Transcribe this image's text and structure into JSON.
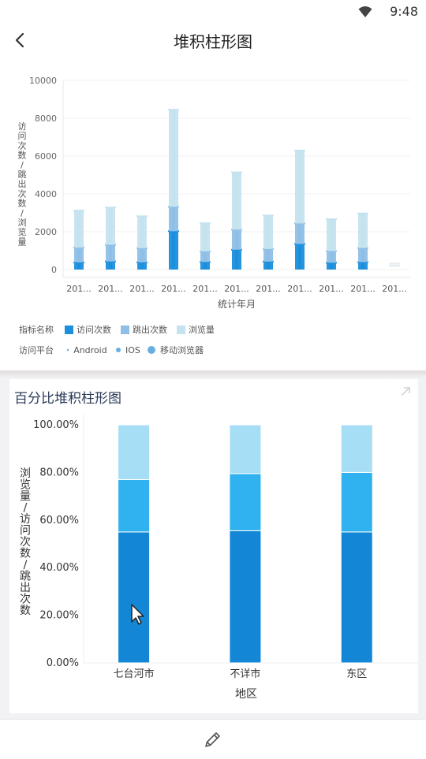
{
  "status": {
    "time": "9:48"
  },
  "header": {
    "title": "堆积柱形图"
  },
  "chart_data": [
    {
      "type": "bar",
      "stacked": true,
      "title": "",
      "xlabel": "统计年月",
      "ylabel": "访问次数/跳出次数/浏览量",
      "ylim": [
        0,
        10000
      ],
      "yticks": [
        "10000",
        "8000",
        "6000",
        "4000",
        "2000",
        "0"
      ],
      "categories": [
        "201...",
        "201...",
        "201...",
        "201...",
        "201...",
        "201...",
        "201...",
        "201...",
        "201...",
        "201...",
        "201..."
      ],
      "series": [
        {
          "name": "访问次数",
          "values": [
            380,
            430,
            380,
            2030,
            400,
            1050,
            420,
            1350,
            360,
            390,
            0
          ]
        },
        {
          "name": "跳出次数",
          "values": [
            780,
            880,
            750,
            1290,
            560,
            1060,
            670,
            1090,
            620,
            750,
            0
          ]
        },
        {
          "name": "浏览量",
          "values": [
            1960,
            1970,
            1690,
            5130,
            1490,
            3030,
            1770,
            3850,
            1680,
            1830,
            0
          ]
        }
      ],
      "legend": {
        "metric_label": "指标名称",
        "metric_items": [
          {
            "name": "访问次数",
            "color": "#1a8fdc"
          },
          {
            "name": "跳出次数",
            "color": "#8fbfe6"
          },
          {
            "name": "浏览量",
            "color": "#c4e3ef"
          }
        ],
        "platform_label": "访问平台",
        "platform_items": [
          "Android",
          "IOS",
          "移动浏览器"
        ]
      }
    },
    {
      "type": "bar",
      "stacked": true,
      "percent": true,
      "title": "百分比堆积柱形图",
      "xlabel": "地区",
      "ylabel": "浏览量/访问次数/跳出次数",
      "ylim": [
        0,
        100
      ],
      "yticks": [
        "100.00%",
        "80.00%",
        "60.00%",
        "40.00%",
        "20.00%",
        "0.00%"
      ],
      "categories": [
        "七台河市",
        "不详市",
        "东区"
      ],
      "series": [
        {
          "values": [
            55,
            55.5,
            55
          ]
        },
        {
          "values": [
            22,
            24,
            25
          ]
        },
        {
          "values": [
            23,
            20.5,
            20
          ]
        }
      ],
      "colors": [
        "#1387d6",
        "#2fb2ef",
        "#a6def6"
      ]
    }
  ]
}
